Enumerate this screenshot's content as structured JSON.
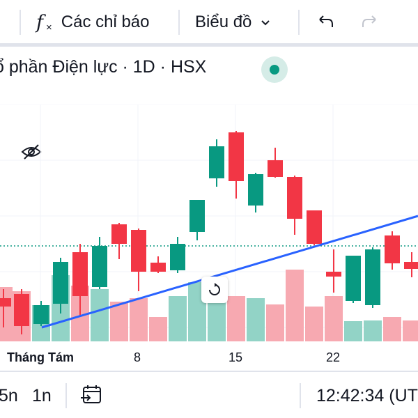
{
  "toolbar": {
    "indicators_label": "Các chỉ báo",
    "chart_type_label": "Biểu đồ"
  },
  "legend": {
    "symbol_text": "ổ phần Điện lực · 1D · HSX"
  },
  "x_axis": {
    "month_label": "Tháng Tám",
    "ticks": [
      "8",
      "15",
      "22"
    ]
  },
  "bottom_bar": {
    "range_5n": "5n",
    "range_1n": "1n",
    "clock": "12:42:34 (UT"
  },
  "colors": {
    "up": "#089981",
    "down": "#f23645",
    "volume_up": "#92d3c6",
    "volume_down": "#f7a9b1",
    "trendline": "#2962ff",
    "price_line": "#089981"
  },
  "chart_data": {
    "type": "candlestick",
    "candles": [
      {
        "dir": "down"
      },
      {
        "dir": "down"
      },
      {
        "dir": "up"
      },
      {
        "dir": "up"
      },
      {
        "dir": "down"
      },
      {
        "dir": "up"
      },
      {
        "dir": "down"
      },
      {
        "dir": "down"
      },
      {
        "dir": "down"
      },
      {
        "dir": "up"
      },
      {
        "dir": "up"
      },
      {
        "dir": "up"
      },
      {
        "dir": "down"
      },
      {
        "dir": "up"
      },
      {
        "dir": "down"
      },
      {
        "dir": "down"
      },
      {
        "dir": "down"
      },
      {
        "dir": "down"
      },
      {
        "dir": "up"
      },
      {
        "dir": "up"
      },
      {
        "dir": "down"
      },
      {
        "dir": "down"
      }
    ],
    "grid": true
  }
}
